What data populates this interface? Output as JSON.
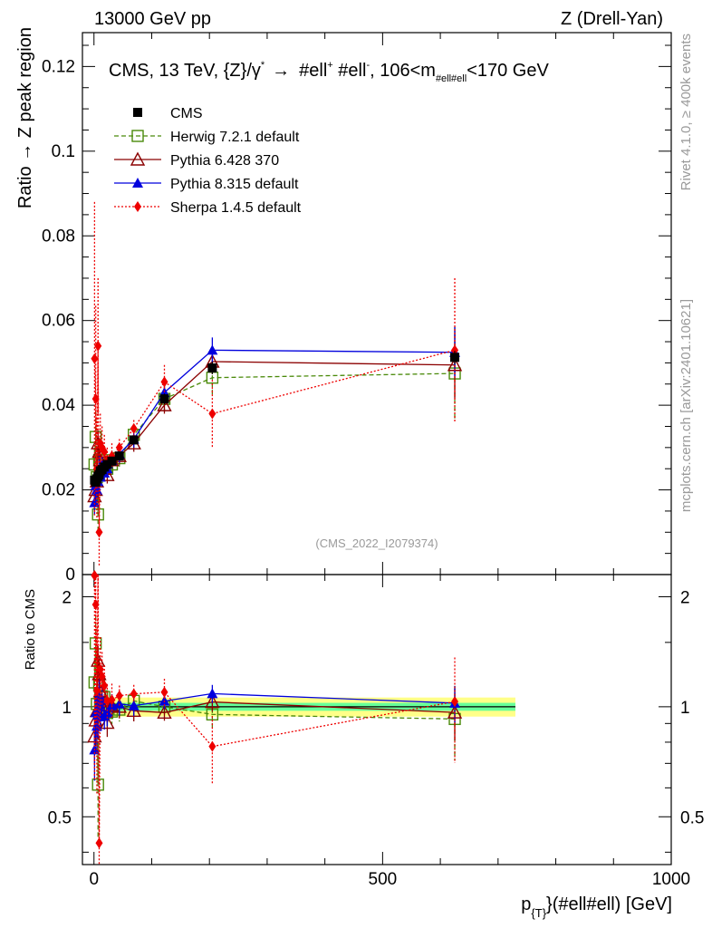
{
  "header": {
    "left": "13000 GeV pp",
    "right": "Z (Drell-Yan)"
  },
  "side": {
    "rivet": "Rivet 4.1.0, ≥ 400k events",
    "mcplots": "mcplots.cern.ch [arXiv:2401.10621]"
  },
  "colors": {
    "cms": "#000000",
    "herwig": "#4a8a0a",
    "pythia6": "#8b0000",
    "pythia8": "#0000dd",
    "sherpa": "#ee0000",
    "band_inner": "#66ff99",
    "band_outer": "#ffff88"
  },
  "chart_data": {
    "type": "scatter",
    "title": "CMS, 13 TeV, {Z}/γ* → #ell⁺ #ell⁻, 106<m_{#ell#ell}<170 GeV",
    "title_parts": {
      "a": "CMS, 13 TeV, {Z}/γ",
      "a_sup": "*",
      "arrow": "→",
      "b": "#ell",
      "b_sup": "+",
      "c": " #ell",
      "c_sup": "-",
      "d": ", 106<m",
      "d_sub": "#ell#ell",
      "e": "<170 GeV"
    },
    "analysis_id": "(CMS_2022_I2079374)",
    "ylabel": "Ratio → Z peak region",
    "ratio_ylabel": "Ratio to CMS",
    "xlabel_parts": {
      "p": "p",
      "sub": "{T}",
      "rest": "}(#ell#ell) [GeV]"
    },
    "xlim": [
      -20,
      1000
    ],
    "ylim": [
      0,
      0.128
    ],
    "ratio_ylim": [
      0.37,
      2.3
    ],
    "x_ticks": [
      0,
      500,
      1000
    ],
    "y_ticks": [
      {
        "v": 0,
        "label": "0"
      },
      {
        "v": 0.02,
        "label": "0.02"
      },
      {
        "v": 0.04,
        "label": "0.04"
      },
      {
        "v": 0.06,
        "label": "0.06"
      },
      {
        "v": 0.08,
        "label": "0.08"
      },
      {
        "v": 0.1,
        "label": "0.1"
      },
      {
        "v": 0.12,
        "label": "0.12"
      }
    ],
    "ratio_y_ticks": [
      {
        "v": 0.5,
        "label": "0.5"
      },
      {
        "v": 1,
        "label": "1"
      },
      {
        "v": 2,
        "label": "2"
      }
    ],
    "x": [
      1,
      3,
      5,
      7,
      9,
      11,
      14,
      18,
      23,
      31,
      44,
      69,
      122,
      205,
      625
    ],
    "cms": {
      "name": "CMS",
      "values": [
        0.0223,
        0.0218,
        0.0226,
        0.0232,
        0.0236,
        0.0245,
        0.0248,
        0.0254,
        0.026,
        0.0268,
        0.028,
        0.0318,
        0.0415,
        0.0488,
        0.0513
      ],
      "band_inner": 0.025,
      "band_outer": 0.06
    },
    "series": [
      {
        "name": "Herwig 7.2.1 default",
        "key": "herwig",
        "marker": "open-square",
        "dash": "5,3",
        "values": [
          0.026,
          0.0325,
          0.023,
          0.0142,
          0.027,
          0.026,
          0.0265,
          0.027,
          0.025,
          0.026,
          0.0275,
          0.033,
          0.0415,
          0.0465,
          0.0475
        ],
        "err": [
          0.004,
          0.006,
          0.004,
          0.004,
          0.004,
          0.004,
          0.003,
          0.003,
          0.002,
          0.002,
          0.002,
          0.002,
          0.003,
          0.004,
          0.011
        ]
      },
      {
        "name": "Pythia 6.428 370",
        "key": "pythia6",
        "marker": "open-triangle",
        "dash": "",
        "values": [
          0.0185,
          0.02,
          0.022,
          0.031,
          0.029,
          0.027,
          0.025,
          0.025,
          0.0235,
          0.027,
          0.028,
          0.031,
          0.04,
          0.0503,
          0.0495
        ],
        "err": [
          0.003,
          0.003,
          0.003,
          0.003,
          0.003,
          0.003,
          0.002,
          0.002,
          0.002,
          0.002,
          0.002,
          0.002,
          0.002,
          0.003,
          0.008
        ]
      },
      {
        "name": "Pythia 8.315 default",
        "key": "pythia8",
        "marker": "filled-triangle",
        "dash": "",
        "values": [
          0.017,
          0.021,
          0.02,
          0.022,
          0.025,
          0.023,
          0.026,
          0.024,
          0.025,
          0.027,
          0.0285,
          0.032,
          0.043,
          0.053,
          0.0525
        ],
        "err": [
          0.003,
          0.003,
          0.003,
          0.003,
          0.003,
          0.002,
          0.002,
          0.002,
          0.002,
          0.002,
          0.002,
          0.002,
          0.002,
          0.003,
          0.006
        ]
      },
      {
        "name": "Sherpa 1.4.5 default",
        "key": "sherpa",
        "marker": "filled-diamond",
        "dash": "2,2",
        "values": [
          0.051,
          0.0415,
          0.025,
          0.054,
          0.01,
          0.031,
          0.03,
          0.029,
          0.027,
          0.028,
          0.03,
          0.0345,
          0.0455,
          0.038,
          0.053
        ],
        "err": [
          0.037,
          0.022,
          0.012,
          0.016,
          0.008,
          0.007,
          0.005,
          0.004,
          0.003,
          0.003,
          0.002,
          0.002,
          0.004,
          0.008,
          0.017
        ]
      }
    ],
    "legend_position": "top-left"
  }
}
